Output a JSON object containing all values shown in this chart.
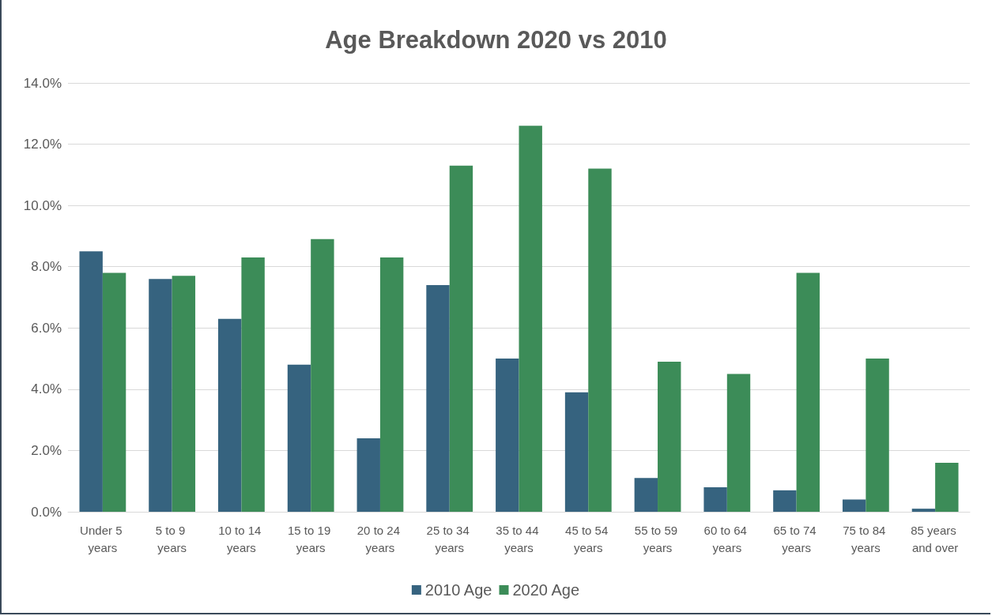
{
  "chart_data": {
    "type": "bar",
    "title": "Age Breakdown 2020 vs 2010",
    "categories": [
      "Under 5 years",
      "5 to 9 years",
      "10 to 14 years",
      "15 to 19 years",
      "20 to 24 years",
      "25 to 34 years",
      "35 to 44 years",
      "45 to 54 years",
      "55 to 59 years",
      "60 to 64 years",
      "65 to 74 years",
      "75 to 84 years",
      "85 years and over"
    ],
    "series": [
      {
        "name": "2010 Age",
        "color": "#36637f",
        "values": [
          8.5,
          7.6,
          6.3,
          4.8,
          2.4,
          7.4,
          5.0,
          3.9,
          1.1,
          0.8,
          0.7,
          0.4,
          0.1
        ]
      },
      {
        "name": "2020 Age",
        "color": "#3c8c58",
        "values": [
          7.8,
          7.7,
          8.3,
          8.9,
          8.3,
          11.3,
          12.6,
          11.2,
          4.9,
          4.5,
          7.8,
          5.0,
          1.6
        ]
      }
    ],
    "ylim": [
      0,
      14
    ],
    "yticks": [
      {
        "value": 0,
        "label": "0.0%"
      },
      {
        "value": 2,
        "label": "2.0%"
      },
      {
        "value": 4,
        "label": "4.0%"
      },
      {
        "value": 6,
        "label": "6.0%"
      },
      {
        "value": 8,
        "label": "8.0%"
      },
      {
        "value": 10,
        "label": "10.0%"
      },
      {
        "value": 12,
        "label": "12.0%"
      },
      {
        "value": 14,
        "label": "14.0%"
      }
    ],
    "grid": "y",
    "legend": "bottom"
  }
}
